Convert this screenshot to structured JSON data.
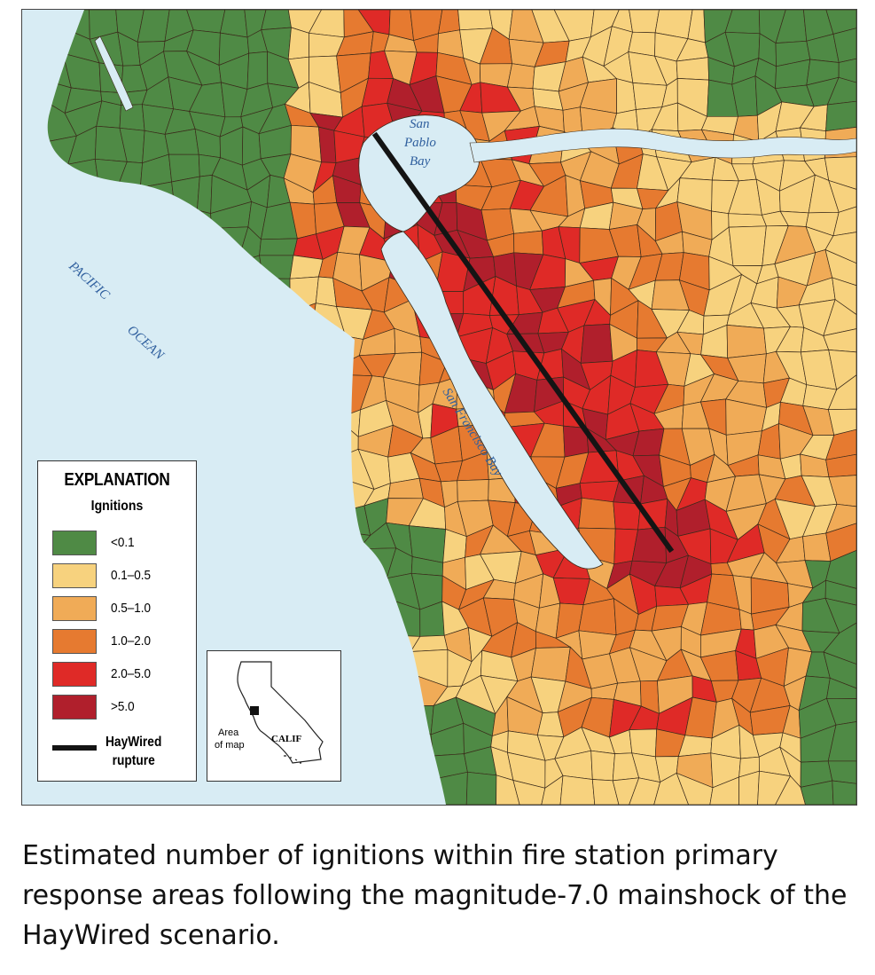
{
  "map": {
    "water_labels": {
      "san_pablo_1": "San",
      "san_pablo_2": "Pablo",
      "san_pablo_3": "Bay",
      "pacific_1": "PACIFIC",
      "pacific_2": "OCEAN",
      "sf_bay": "San Francisco Bay"
    },
    "colors": {
      "water": "#d8ecf4",
      "lt_0_1": "#4f8a45",
      "c0_1_0_5": "#f7d27e",
      "c0_5_1_0": "#f0ab57",
      "c1_0_2_0": "#e67a30",
      "c2_0_5_0": "#df2a27",
      "gt_5_0": "#b01f2c",
      "rupture": "#141414",
      "cell_border": "#3a2a1a"
    }
  },
  "legend": {
    "title": "EXPLANATION",
    "subtitle": "Ignitions",
    "items": [
      {
        "label": "<0.1",
        "color": "#4f8a45"
      },
      {
        "label": "0.1–0.5",
        "color": "#f7d27e"
      },
      {
        "label": "0.5–1.0",
        "color": "#f0ab57"
      },
      {
        "label": "1.0–2.0",
        "color": "#e67a30"
      },
      {
        "label": "2.0–5.0",
        "color": "#df2a27"
      },
      {
        "label": ">5.0",
        "color": "#b01f2c"
      }
    ],
    "rupture_label_1": "HayWired",
    "rupture_label_2": "rupture"
  },
  "inset": {
    "area_label_1": "Area",
    "area_label_2": "of map",
    "state_label": "CALIF"
  },
  "caption": "Estimated number of ignitions within fire station primary response areas following the magnitude-7.0 mainshock of the HayWired scenario."
}
